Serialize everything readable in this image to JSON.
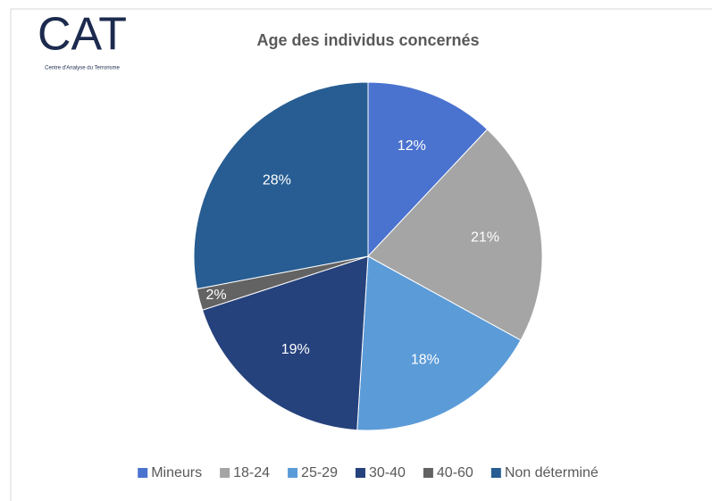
{
  "logo": {
    "name": "CAT",
    "caption": "Centre d'Analyse du Terrorisme"
  },
  "chart_data": {
    "type": "pie",
    "title": "Age des individus concernés",
    "categories": [
      "Mineurs",
      "18-24",
      "25-29",
      "30-40",
      "40-60",
      "Non déterminé"
    ],
    "values": [
      12,
      21,
      18,
      19,
      2,
      28
    ],
    "value_labels": [
      "12%",
      "21%",
      "18%",
      "19%",
      "2%",
      "28%"
    ],
    "colors": [
      "#4a72cf",
      "#a5a5a5",
      "#5b9bd8",
      "#26427c",
      "#636363",
      "#275d92"
    ],
    "legend": "bottom"
  }
}
